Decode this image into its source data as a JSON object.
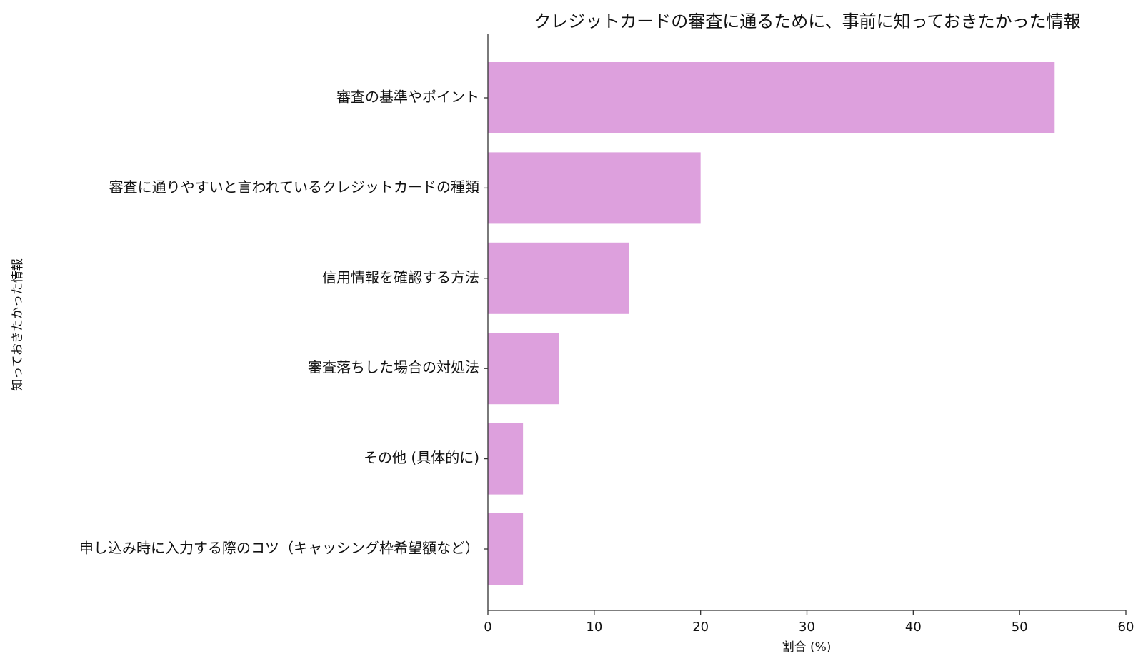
{
  "chart_data": {
    "type": "bar",
    "orientation": "horizontal",
    "title": "クレジットカードの審査に通るために、事前に知っておきたかった情報",
    "xlabel": "割合 (%)",
    "ylabel": "知っておきたかった情報",
    "categories": [
      "審査の基準やポイント",
      "審査に通りやすいと言われているクレジットカードの種類",
      "信用情報を確認する方法",
      "審査落ちした場合の対処法",
      "その他 (具体的に)",
      "申し込み時に入力する際のコツ（キャッシング枠希望額など）"
    ],
    "values": [
      53.3,
      20.0,
      13.3,
      6.7,
      3.3,
      3.3
    ],
    "xlim": [
      0,
      60
    ],
    "xticks": [
      "0",
      "10",
      "20",
      "30",
      "40",
      "50",
      "60"
    ],
    "bar_color": "#DDA0DD",
    "grid": false
  }
}
